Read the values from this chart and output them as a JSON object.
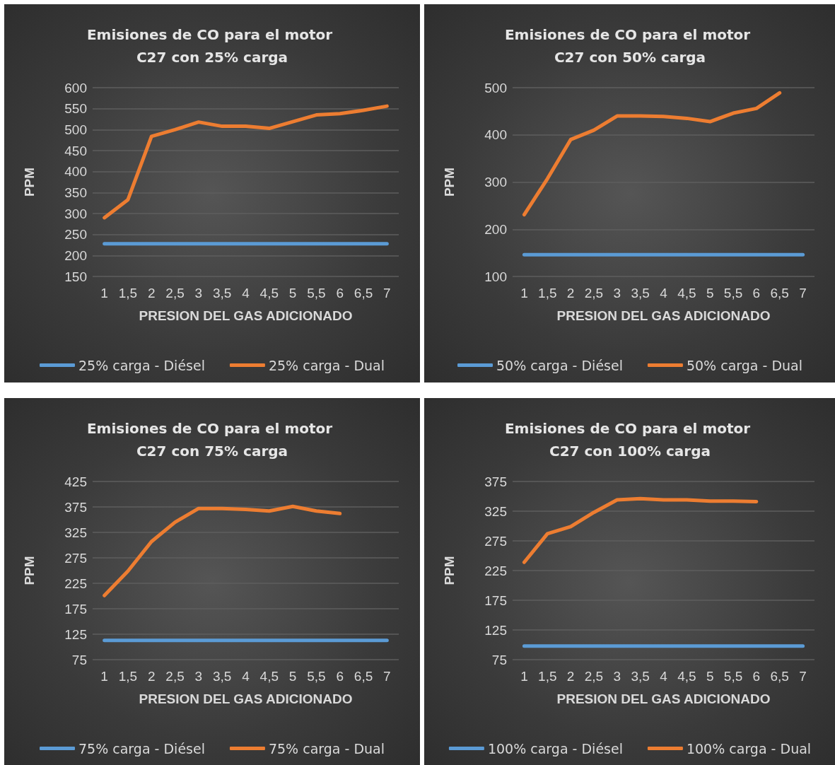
{
  "chart_data": [
    {
      "type": "line",
      "title": "Emisiones de CO para el motor C27 con 25% carga",
      "xlabel": "PRESION DEL GAS ADICIONADO",
      "ylabel": "PPM",
      "categories": [
        "1",
        "1,5",
        "2",
        "2,5",
        "3",
        "3,5",
        "4",
        "4,5",
        "5",
        "5,5",
        "6",
        "6,5",
        "7"
      ],
      "ylim": [
        150,
        600
      ],
      "yticks": [
        150,
        200,
        250,
        300,
        350,
        400,
        450,
        500,
        550,
        600
      ],
      "grid": "y",
      "legend": "bottom",
      "marker": "none",
      "line_style": "solid",
      "series": [
        {
          "name": "25% carga - Diésel",
          "color": "#5b9bd5",
          "values": [
            228,
            228,
            228,
            228,
            228,
            228,
            228,
            228,
            228,
            228,
            228,
            228,
            228
          ]
        },
        {
          "name": "25% carga - Dual",
          "color": "#ed7d31",
          "values": [
            290,
            333,
            484,
            500,
            518,
            508,
            508,
            503,
            519,
            535,
            538,
            546,
            556
          ]
        }
      ]
    },
    {
      "type": "line",
      "title": "Emisiones de CO para el motor C27 con 50% carga",
      "xlabel": "PRESION DEL GAS ADICIONADO",
      "ylabel": "PPM",
      "categories": [
        "1",
        "1,5",
        "2",
        "2,5",
        "3",
        "3,5",
        "4",
        "4,5",
        "5",
        "5,5",
        "6",
        "6,5",
        "7"
      ],
      "ylim": [
        100,
        500
      ],
      "yticks": [
        100,
        200,
        300,
        400,
        500
      ],
      "grid": "y",
      "legend": "bottom",
      "marker": "none",
      "line_style": "solid",
      "series": [
        {
          "name": "50% carga - Diésel",
          "color": "#5b9bd5",
          "values": [
            146,
            146,
            146,
            146,
            146,
            146,
            146,
            146,
            146,
            146,
            146,
            146,
            146
          ]
        },
        {
          "name": "50% carga - Dual",
          "color": "#ed7d31",
          "values": [
            231,
            307,
            390,
            410,
            440,
            440,
            439,
            435,
            428,
            446,
            456,
            489,
            null
          ]
        }
      ]
    },
    {
      "type": "line",
      "title": "Emisiones de CO para el motor C27 con 75% carga",
      "xlabel": "PRESION DEL GAS ADICIONADO",
      "ylabel": "PPM",
      "categories": [
        "1",
        "1,5",
        "2",
        "2,5",
        "3",
        "3,5",
        "4",
        "4,5",
        "5",
        "5,5",
        "6",
        "6,5",
        "7"
      ],
      "ylim": [
        75,
        425
      ],
      "yticks": [
        75,
        125,
        175,
        225,
        275,
        325,
        375,
        425
      ],
      "grid": "y",
      "legend": "bottom",
      "marker": "none",
      "line_style": "solid",
      "series": [
        {
          "name": "75% carga - Diésel",
          "color": "#5b9bd5",
          "values": [
            113,
            113,
            113,
            113,
            113,
            113,
            113,
            113,
            113,
            113,
            113,
            113,
            113
          ]
        },
        {
          "name": "75% carga - Dual",
          "color": "#ed7d31",
          "values": [
            201,
            249,
            307,
            345,
            372,
            372,
            370,
            367,
            376,
            367,
            362,
            null,
            null
          ]
        }
      ]
    },
    {
      "type": "line",
      "title": "Emisiones de CO para el motor C27 con 100% carga",
      "xlabel": "PRESION DEL GAS ADICIONADO",
      "ylabel": "PPM",
      "categories": [
        "1",
        "1,5",
        "2",
        "2,5",
        "3",
        "3,5",
        "4",
        "4,5",
        "5",
        "5,5",
        "6",
        "6,5",
        "7"
      ],
      "ylim": [
        75,
        375
      ],
      "yticks": [
        75,
        125,
        175,
        225,
        275,
        325,
        375
      ],
      "grid": "y",
      "legend": "bottom",
      "marker": "none",
      "line_style": "solid",
      "series": [
        {
          "name": "100% carga - Diésel",
          "color": "#5b9bd5",
          "values": [
            98,
            98,
            98,
            98,
            98,
            98,
            98,
            98,
            98,
            98,
            98,
            98,
            98
          ]
        },
        {
          "name": "100% carga - Dual",
          "color": "#ed7d31",
          "values": [
            239,
            287,
            299,
            323,
            344,
            346,
            344,
            344,
            342,
            342,
            341,
            null,
            null
          ]
        }
      ]
    }
  ]
}
